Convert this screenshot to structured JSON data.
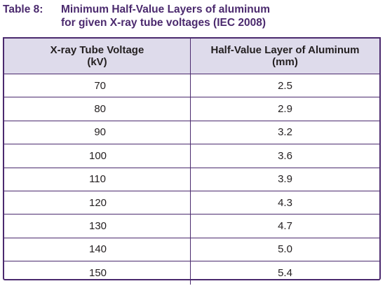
{
  "caption": {
    "number": "Table 8:",
    "line1": "Minimum Half-Value Layers of aluminum",
    "line2": "for given X-ray tube voltages (IEC 2008)"
  },
  "table": {
    "header": {
      "col1_line1": "X-ray Tube Voltage",
      "col1_line2": "(kV)",
      "col2_line1": "Half-Value Layer of Aluminum",
      "col2_line2": "(mm)"
    },
    "rows": [
      {
        "voltage": "70",
        "hvl": "2.5"
      },
      {
        "voltage": "80",
        "hvl": "2.9"
      },
      {
        "voltage": "90",
        "hvl": "3.2"
      },
      {
        "voltage": "100",
        "hvl": "3.6"
      },
      {
        "voltage": "110",
        "hvl": "3.9"
      },
      {
        "voltage": "120",
        "hvl": "4.3"
      },
      {
        "voltage": "130",
        "hvl": "4.7"
      },
      {
        "voltage": "140",
        "hvl": "5.0"
      },
      {
        "voltage": "150",
        "hvl": "5.4"
      }
    ]
  },
  "colors": {
    "accent": "#4b2a6e",
    "header_bg": "#dedbeb",
    "text": "#231f20"
  }
}
